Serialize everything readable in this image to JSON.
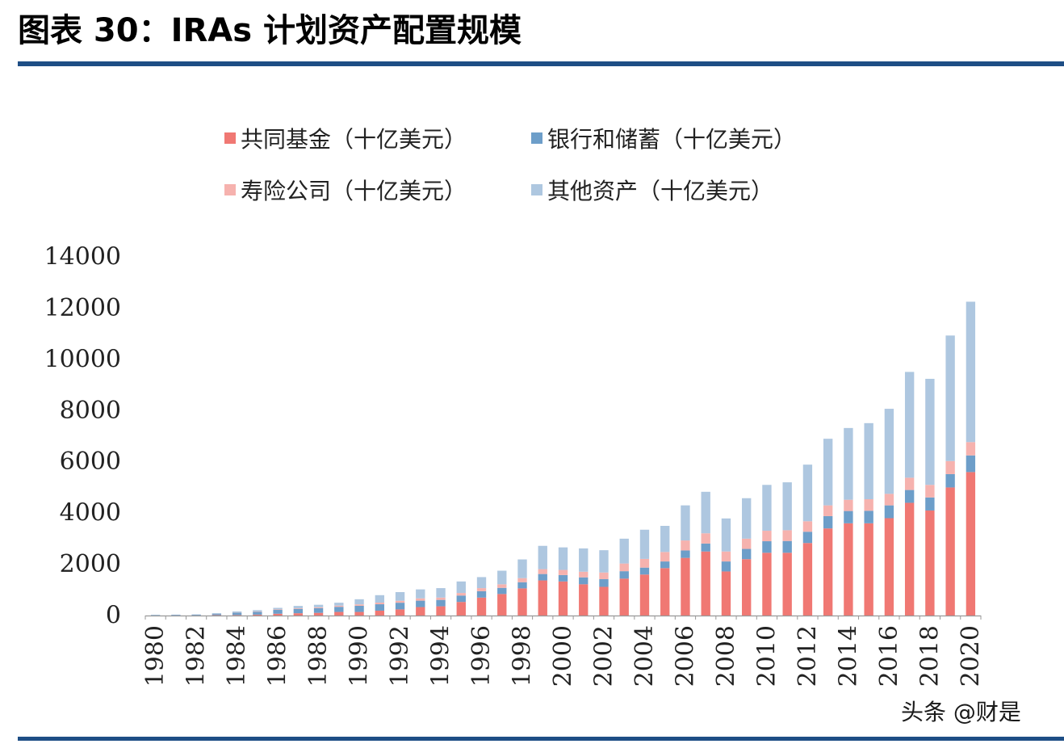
{
  "page": {
    "title": "图表 30：IRAs 计划资产配置规模",
    "watermark": "头条 @财是"
  },
  "colors": {
    "rule": "#1e4e85",
    "mutual_funds": "#f07873",
    "bank_savings": "#6d9ec9",
    "life_insurance": "#f6b2ae",
    "other_assets": "#aec7e0",
    "axis": "#999999",
    "text": "#222222"
  },
  "chart_data": {
    "type": "bar",
    "stacked": true,
    "legend_position": "top",
    "grid": false,
    "title": "",
    "xlabel": "",
    "ylabel": "",
    "ylim": [
      0,
      14000
    ],
    "yticks": [
      "0",
      "2000",
      "4000",
      "6000",
      "8000",
      "10000",
      "12000",
      "14000"
    ],
    "categories": [
      "1980",
      "1981",
      "1982",
      "1983",
      "1984",
      "1985",
      "1986",
      "1987",
      "1988",
      "1989",
      "1990",
      "1991",
      "1992",
      "1993",
      "1994",
      "1995",
      "1996",
      "1997",
      "1998",
      "1999",
      "2000",
      "2001",
      "2002",
      "2003",
      "2004",
      "2005",
      "2006",
      "2007",
      "2008",
      "2009",
      "2010",
      "2011",
      "2012",
      "2013",
      "2014",
      "2015",
      "2016",
      "2017",
      "2018",
      "2019",
      "2020"
    ],
    "xtick_labels": [
      "1980",
      "",
      "1982",
      "",
      "1984",
      "",
      "1986",
      "",
      "1988",
      "",
      "1990",
      "",
      "1992",
      "",
      "1994",
      "",
      "1996",
      "",
      "1998",
      "",
      "2000",
      "",
      "2002",
      "",
      "2004",
      "",
      "2006",
      "",
      "2008",
      "",
      "2010",
      "",
      "2012",
      "",
      "2014",
      "",
      "2016",
      "",
      "2018",
      "",
      "2020"
    ],
    "series": [
      {
        "name": "共同基金（十亿美元）",
        "color": "#f07873",
        "values": [
          2,
          4,
          6,
          15,
          20,
          35,
          70,
          90,
          105,
          140,
          140,
          190,
          240,
          330,
          360,
          530,
          700,
          840,
          1060,
          1370,
          1330,
          1220,
          1120,
          1440,
          1600,
          1850,
          2250,
          2500,
          1720,
          2200,
          2450,
          2450,
          2830,
          3400,
          3600,
          3600,
          3800,
          4400,
          4100,
          5000,
          5600
        ]
      },
      {
        "name": "银行和储蓄（十亿美元）",
        "color": "#6d9ec9",
        "values": [
          20,
          25,
          30,
          45,
          90,
          110,
          150,
          170,
          180,
          200,
          240,
          250,
          260,
          250,
          250,
          250,
          250,
          240,
          240,
          250,
          250,
          270,
          300,
          290,
          270,
          260,
          290,
          310,
          390,
          400,
          450,
          460,
          440,
          480,
          480,
          490,
          500,
          500,
          510,
          520,
          650
        ]
      },
      {
        "name": "寿险公司（十亿美元）",
        "color": "#f6b2ae",
        "values": [
          0,
          0,
          0,
          5,
          10,
          15,
          20,
          25,
          35,
          45,
          55,
          65,
          75,
          90,
          90,
          100,
          120,
          140,
          160,
          190,
          200,
          220,
          260,
          300,
          340,
          370,
          390,
          400,
          390,
          400,
          410,
          420,
          410,
          420,
          440,
          450,
          450,
          480,
          490,
          510,
          520
        ]
      },
      {
        "name": "其他资产（十亿美元）",
        "color": "#aec7e0",
        "values": [
          3,
          5,
          10,
          30,
          40,
          50,
          60,
          90,
          100,
          115,
          200,
          290,
          340,
          350,
          370,
          450,
          430,
          530,
          730,
          910,
          880,
          910,
          870,
          970,
          1140,
          1020,
          1370,
          1620,
          1290,
          1580,
          1790,
          1870,
          2210,
          2600,
          2800,
          2970,
          3320,
          4130,
          4140,
          4900,
          5480
        ]
      }
    ]
  }
}
